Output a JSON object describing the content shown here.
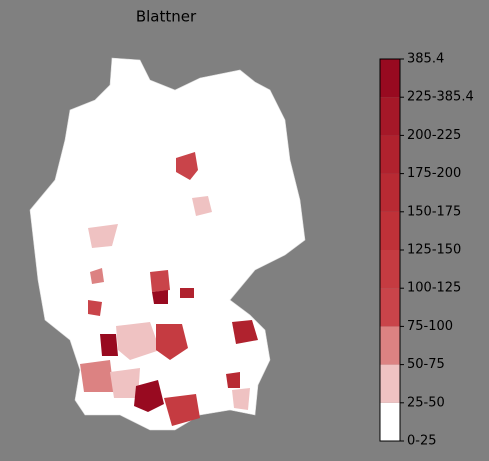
{
  "title": "Blattner",
  "colorbar": {
    "labels": [
      "0-25",
      "25-50",
      "50-75",
      "75-100",
      "100-125",
      "125-150",
      "150-175",
      "175-200",
      "200-225",
      "225-385.4",
      "385.4"
    ],
    "colors": [
      "#ffffff",
      "#efc2c2",
      "#dc8282",
      "#c9444a",
      "#c53b41",
      "#bf3138",
      "#b82a33",
      "#b0222e",
      "#a51828",
      "#980a20"
    ]
  }
}
